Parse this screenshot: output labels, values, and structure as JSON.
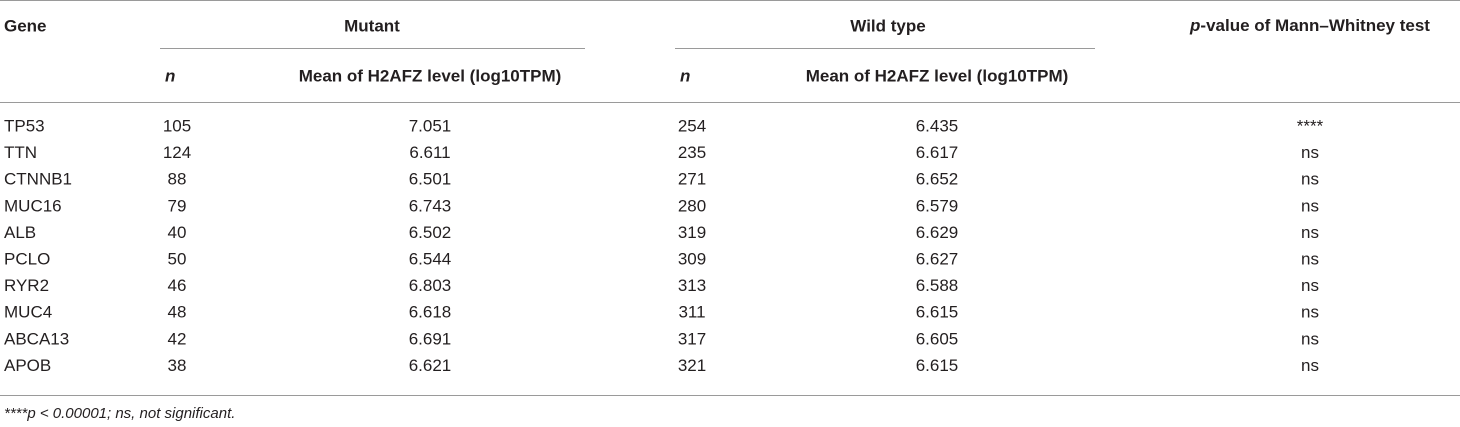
{
  "table": {
    "header": {
      "gene": "Gene",
      "mutant": "Mutant",
      "wild_type": "Wild type",
      "p_value": {
        "italic": "p",
        "text": "-value of Mann–Whitney test"
      },
      "n_mutant": "n",
      "mean_mutant": "Mean of H2AFZ level (log10TPM)",
      "n_wild": "n",
      "mean_wild": "Mean of H2AFZ level (log10TPM)"
    },
    "rows": [
      [
        "TP53",
        "105",
        "7.051",
        "254",
        "6.435",
        "****"
      ],
      [
        "TTN",
        "124",
        "6.611",
        "235",
        "6.617",
        "ns"
      ],
      [
        "CTNNB1",
        "88",
        "6.501",
        "271",
        "6.652",
        "ns"
      ],
      [
        "MUC16",
        "79",
        "6.743",
        "280",
        "6.579",
        "ns"
      ],
      [
        "ALB",
        "40",
        "6.502",
        "319",
        "6.629",
        "ns"
      ],
      [
        "PCLO",
        "50",
        "6.544",
        "309",
        "6.627",
        "ns"
      ],
      [
        "RYR2",
        "46",
        "6.803",
        "313",
        "6.588",
        "ns"
      ],
      [
        "MUC4",
        "48",
        "6.618",
        "311",
        "6.615",
        "ns"
      ],
      [
        "ABCA13",
        "42",
        "6.691",
        "317",
        "6.605",
        "ns"
      ],
      [
        "APOB",
        "38",
        "6.621",
        "321",
        "6.615",
        "ns"
      ]
    ]
  },
  "footnote": "****p < 0.00001; ns, not significant."
}
